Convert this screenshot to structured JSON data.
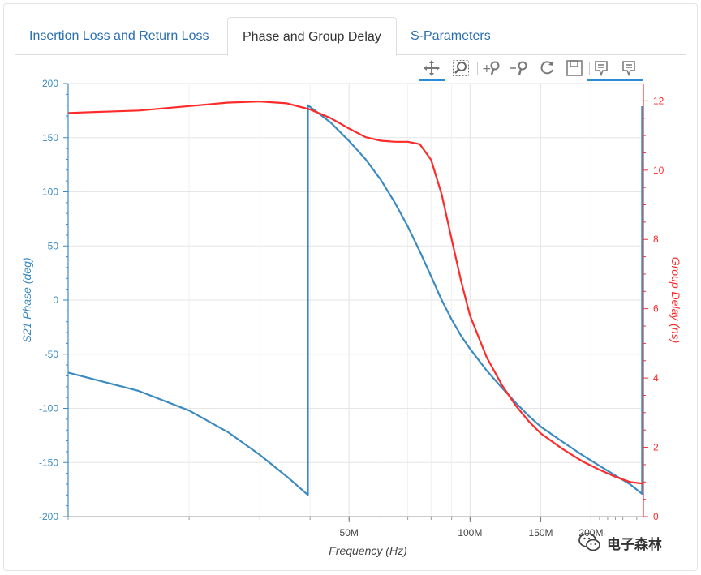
{
  "tabs": [
    {
      "label": "Insertion Loss and Return Loss",
      "active": false
    },
    {
      "label": "Phase and Group Delay",
      "active": true
    },
    {
      "label": "S-Parameters",
      "active": false
    }
  ],
  "toolbar": [
    {
      "icon": "pan-icon",
      "active": true
    },
    {
      "icon": "box-zoom-icon",
      "active": false
    },
    {
      "icon": "zoom-in-icon",
      "active": false
    },
    {
      "icon": "zoom-out-icon",
      "active": false
    },
    {
      "icon": "reset-icon",
      "active": false
    },
    {
      "icon": "save-icon",
      "active": false
    },
    {
      "icon": "hover-icon",
      "active": true
    },
    {
      "icon": "hover-icon",
      "active": false
    }
  ],
  "watermark": {
    "text": "电子森林",
    "icon": "wechat-icon"
  },
  "chart_data": {
    "type": "line",
    "xlabel": "Frequency (Hz)",
    "ylabel_left": "S21 Phase (deg)",
    "ylabel_right": "Group Delay (ns)",
    "x_scale": "log",
    "xlim": [
      10000000,
      270000000
    ],
    "ylim_left": [
      -200,
      200
    ],
    "ylim_right": [
      0,
      12.5
    ],
    "x_ticks": [
      {
        "value": 50000000,
        "label": "50M"
      },
      {
        "value": 100000000,
        "label": "100M"
      },
      {
        "value": 150000000,
        "label": "150M"
      },
      {
        "value": 200000000,
        "label": "200M"
      }
    ],
    "y_ticks_left": [
      200,
      150,
      100,
      50,
      0,
      -50,
      -100,
      -150,
      -200
    ],
    "y_ticks_right": [
      0,
      2,
      4,
      6,
      8,
      10,
      12
    ],
    "colors": {
      "phase": "#3b8bc2",
      "delay": "#ff2a2a",
      "left_axis": "#3b8bc2",
      "right_axis": "#ff2a2a"
    },
    "grid": true,
    "series": [
      {
        "axis": "left",
        "color": "#3b8bc2",
        "x": [
          10000000,
          15000000,
          20000000,
          25000000,
          30000000,
          35000000,
          39500000,
          39500000,
          45000000,
          50000000,
          55000000,
          60000000,
          65000000,
          70000000,
          75000000,
          80000000,
          85000000,
          90000000,
          95000000,
          100000000,
          110000000,
          120000000,
          130000000,
          140000000,
          150000000,
          170000000,
          190000000,
          210000000,
          230000000,
          250000000,
          268000000,
          268000000
        ],
        "y": [
          -67,
          -84,
          -102,
          -122,
          -143,
          -163,
          -180,
          180,
          164,
          147,
          130,
          111,
          90,
          68,
          45,
          22,
          0,
          -18,
          -33,
          -45,
          -65,
          -81,
          -95,
          -107,
          -117,
          -131,
          -143,
          -153,
          -162,
          -170,
          -179,
          179
        ]
      },
      {
        "axis": "right",
        "color": "#ff2a2a",
        "x": [
          10000000,
          15000000,
          20000000,
          25000000,
          30000000,
          35000000,
          40000000,
          45000000,
          50000000,
          55000000,
          60000000,
          65000000,
          70000000,
          75000000,
          80000000,
          85000000,
          90000000,
          95000000,
          100000000,
          110000000,
          120000000,
          130000000,
          140000000,
          150000000,
          170000000,
          190000000,
          210000000,
          230000000,
          250000000,
          270000000
        ],
        "y": [
          11.65,
          11.72,
          11.85,
          11.95,
          11.98,
          11.93,
          11.75,
          11.5,
          11.2,
          10.95,
          10.85,
          10.82,
          10.82,
          10.75,
          10.3,
          9.3,
          8.0,
          6.8,
          5.8,
          4.6,
          3.8,
          3.2,
          2.75,
          2.4,
          1.95,
          1.6,
          1.35,
          1.15,
          1.0,
          0.95
        ]
      }
    ]
  }
}
